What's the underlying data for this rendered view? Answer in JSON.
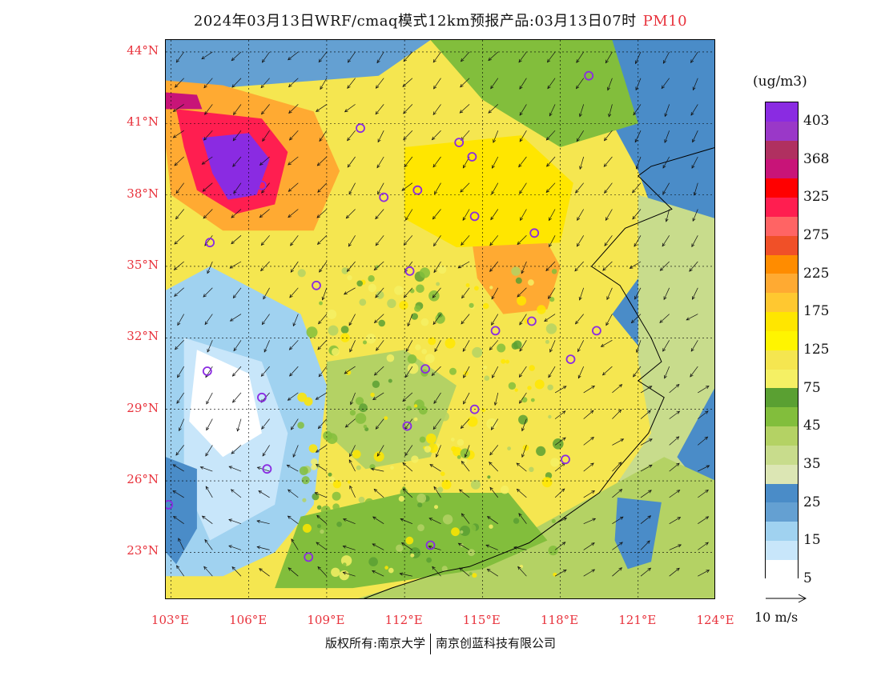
{
  "header": {
    "title": "2024年03月13日WRF/cmaq模式12km预报产品:03月13日07时",
    "pollutant": "PM10"
  },
  "map": {
    "lat_labels": [
      "44°N",
      "41°N",
      "38°N",
      "35°N",
      "32°N",
      "29°N",
      "26°N",
      "23°N"
    ],
    "lon_labels": [
      "103°E",
      "106°E",
      "109°E",
      "112°E",
      "115°E",
      "118°E",
      "121°E",
      "124°E"
    ],
    "lat_range": [
      21,
      44.5
    ],
    "lon_range": [
      102.8,
      124
    ],
    "colors": {
      "label": "#e8323c",
      "station_marker": "#8a2be2"
    },
    "stations": [
      {
        "lon": 119.1,
        "lat": 43.0
      },
      {
        "lon": 110.3,
        "lat": 40.8
      },
      {
        "lon": 114.1,
        "lat": 40.2
      },
      {
        "lon": 114.6,
        "lat": 39.6
      },
      {
        "lon": 111.2,
        "lat": 37.9
      },
      {
        "lon": 112.5,
        "lat": 38.2
      },
      {
        "lon": 106.5,
        "lat": 38.4
      },
      {
        "lon": 104.5,
        "lat": 36.0
      },
      {
        "lon": 114.7,
        "lat": 37.1
      },
      {
        "lon": 117.0,
        "lat": 36.4
      },
      {
        "lon": 112.2,
        "lat": 34.8
      },
      {
        "lon": 108.6,
        "lat": 34.2
      },
      {
        "lon": 116.9,
        "lat": 32.7
      },
      {
        "lon": 115.5,
        "lat": 32.3
      },
      {
        "lon": 119.4,
        "lat": 32.3
      },
      {
        "lon": 118.4,
        "lat": 31.1
      },
      {
        "lon": 104.4,
        "lat": 30.6
      },
      {
        "lon": 112.8,
        "lat": 30.7
      },
      {
        "lon": 106.5,
        "lat": 29.5
      },
      {
        "lon": 114.7,
        "lat": 29.0
      },
      {
        "lon": 112.1,
        "lat": 28.3
      },
      {
        "lon": 106.7,
        "lat": 26.5
      },
      {
        "lon": 118.2,
        "lat": 26.9
      },
      {
        "lon": 102.9,
        "lat": 25.0
      },
      {
        "lon": 108.3,
        "lat": 22.8
      },
      {
        "lon": 113.0,
        "lat": 23.3
      }
    ]
  },
  "legend": {
    "unit": "(ug/m3)",
    "labels": [
      "403",
      "368",
      "325",
      "275",
      "225",
      "175",
      "125",
      "75",
      "45",
      "35",
      "25",
      "15",
      "5"
    ],
    "colors": [
      "#8a2be2",
      "#9a38c8",
      "#b03060",
      "#c81478",
      "#ff0000",
      "#ff1e50",
      "#ff6464",
      "#f05028",
      "#ff8c00",
      "#ffaa32",
      "#ffc830",
      "#ffe600",
      "#fff500",
      "#f5e650",
      "#f5f064",
      "#5aa032",
      "#82be3c",
      "#b4d264",
      "#c8dc8c",
      "#dce6b4",
      "#4a8cc8",
      "#64a0d2",
      "#a0d2f0",
      "#c8e6fa",
      "#ffffff"
    ]
  },
  "wind_reference": {
    "label": "10 m/s"
  },
  "footer": {
    "copyright": "版权所有:南京大学",
    "company": "南京创蓝科技有限公司"
  }
}
